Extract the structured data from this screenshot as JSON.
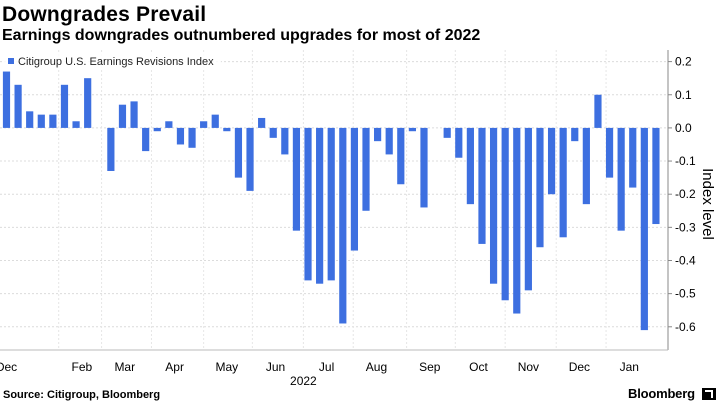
{
  "header": {
    "title": "Downgrades Prevail",
    "subtitle": "Earnings downgrades outnumbered upgrades for most of 2022"
  },
  "footer": {
    "source": "Source: Citigroup, Bloomberg",
    "brand": "Bloomberg"
  },
  "chart_data": {
    "type": "bar",
    "title": "Downgrades Prevail",
    "subtitle": "Earnings downgrades outnumbered upgrades for most of 2022",
    "series": [
      {
        "name": "Citigroup U.S. Earnings Revisions Index",
        "color": "#3d6fe0",
        "values": [
          0.17,
          0.13,
          0.05,
          0.04,
          0.04,
          0.13,
          0.02,
          0.15,
          0.0,
          -0.13,
          0.07,
          0.08,
          -0.07,
          -0.01,
          0.02,
          -0.05,
          -0.06,
          0.02,
          0.04,
          -0.01,
          -0.15,
          -0.19,
          0.03,
          -0.03,
          -0.08,
          -0.31,
          -0.46,
          -0.47,
          -0.46,
          -0.59,
          -0.37,
          -0.25,
          -0.04,
          -0.08,
          -0.17,
          -0.01,
          -0.24,
          0.0,
          -0.03,
          -0.09,
          -0.23,
          -0.35,
          -0.47,
          -0.52,
          -0.56,
          -0.49,
          -0.36,
          -0.2,
          -0.33,
          -0.04,
          -0.23,
          0.1,
          -0.15,
          -0.31,
          -0.18,
          -0.61,
          -0.29
        ]
      }
    ],
    "xaxis": {
      "ticks": [
        "Dec",
        "Feb",
        "Mar",
        "Apr",
        "May",
        "Jun",
        "Jul",
        "Aug",
        "Sep",
        "Oct",
        "Nov",
        "Dec",
        "Jan"
      ],
      "tick_positions": [
        0,
        6.5,
        10.2,
        14.5,
        19.0,
        23.2,
        27.6,
        31.9,
        36.5,
        40.7,
        45.0,
        49.4,
        53.7
      ],
      "year_label": "2022",
      "year_position": 25.6
    },
    "yaxis": {
      "label": "Index level",
      "ticks": [
        "0.2",
        "0.1",
        "0.0",
        "-0.1",
        "-0.2",
        "-0.3",
        "-0.4",
        "-0.5",
        "-0.6"
      ],
      "tick_values": [
        0.2,
        0.1,
        0.0,
        -0.1,
        -0.2,
        -0.3,
        -0.4,
        -0.5,
        -0.6
      ],
      "range": [
        -0.67,
        0.235
      ],
      "side": "right"
    },
    "grid": true,
    "legend": {
      "position": "top-left"
    }
  }
}
